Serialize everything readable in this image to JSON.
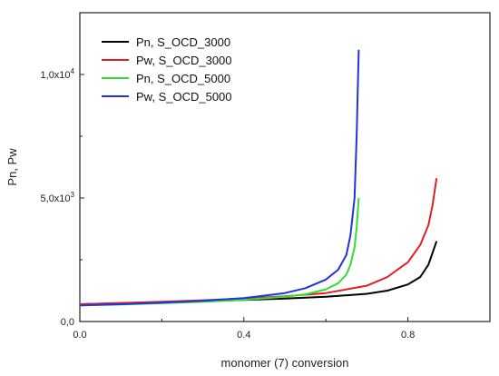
{
  "chart_data": {
    "type": "line",
    "xlabel": "monomer (7) conversion",
    "ylabel": "Pn, Pw",
    "xlim": [
      0,
      1.0
    ],
    "ylim": [
      0,
      12500
    ],
    "x_ticks": [
      {
        "value": 0.0,
        "label": "0.0"
      },
      {
        "value": 0.4,
        "label": "0.4"
      },
      {
        "value": 0.8,
        "label": "0.8"
      }
    ],
    "y_ticks": [
      {
        "value": 0,
        "label": "0,0"
      },
      {
        "value": 5000,
        "label": "5,0x10",
        "exp": "3"
      },
      {
        "value": 10000,
        "label": "1,0x10",
        "exp": "4"
      }
    ],
    "legend_position": "top-left",
    "grid": false,
    "series": [
      {
        "name": "Pn, S_OCD_3000",
        "color": "#000000",
        "x": [
          0.0,
          0.1,
          0.2,
          0.3,
          0.4,
          0.5,
          0.6,
          0.7,
          0.75,
          0.8,
          0.83,
          0.85,
          0.87
        ],
        "y": [
          700,
          740,
          780,
          820,
          870,
          930,
          1000,
          1120,
          1250,
          1500,
          1800,
          2300,
          3250
        ]
      },
      {
        "name": "Pw, S_OCD_3000",
        "color": "#e02020",
        "x": [
          0.0,
          0.1,
          0.2,
          0.3,
          0.4,
          0.5,
          0.6,
          0.7,
          0.75,
          0.8,
          0.83,
          0.85,
          0.86,
          0.87
        ],
        "y": [
          700,
          750,
          800,
          860,
          930,
          1020,
          1150,
          1450,
          1800,
          2400,
          3100,
          3900,
          4700,
          5800
        ]
      },
      {
        "name": "Pn, S_OCD_5000",
        "color": "#33dd33",
        "x": [
          0.0,
          0.1,
          0.2,
          0.3,
          0.4,
          0.5,
          0.55,
          0.6,
          0.63,
          0.65,
          0.66,
          0.67,
          0.675,
          0.68
        ],
        "y": [
          650,
          690,
          740,
          800,
          880,
          1000,
          1100,
          1300,
          1550,
          1900,
          2300,
          3000,
          3800,
          5000
        ]
      },
      {
        "name": "Pw, S_OCD_5000",
        "color": "#2233dd",
        "x": [
          0.0,
          0.1,
          0.2,
          0.3,
          0.4,
          0.5,
          0.55,
          0.6,
          0.63,
          0.65,
          0.66,
          0.67,
          0.675,
          0.68
        ],
        "y": [
          650,
          700,
          760,
          840,
          950,
          1150,
          1350,
          1700,
          2100,
          2700,
          3500,
          5000,
          7500,
          11000
        ]
      }
    ]
  }
}
